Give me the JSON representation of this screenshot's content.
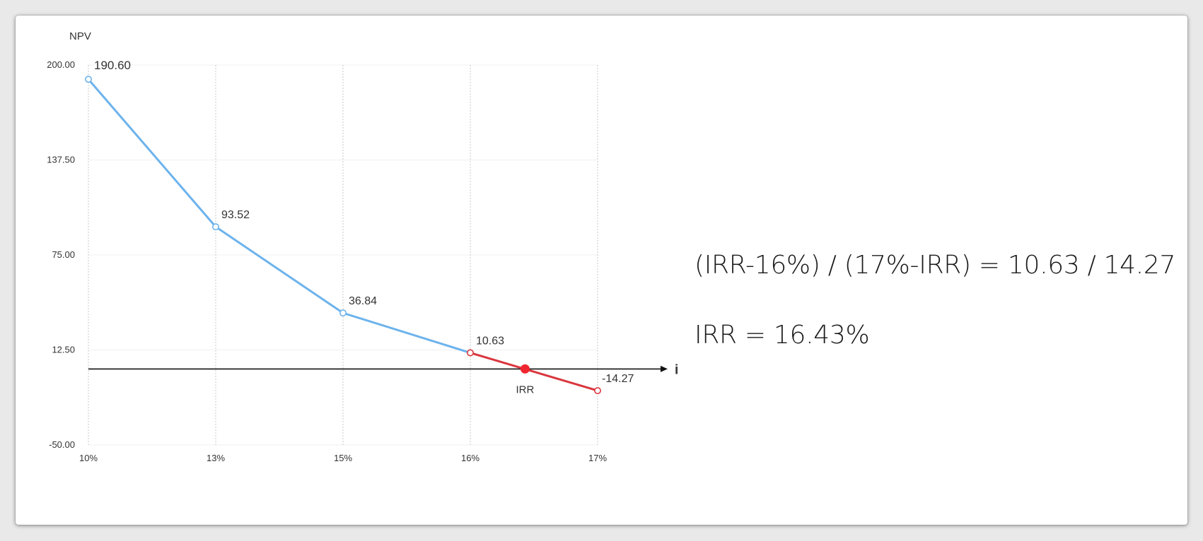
{
  "chart_data": {
    "type": "line",
    "ylabel": "NPV",
    "xlabel": "i",
    "x_categories": [
      "10%",
      "13%",
      "15%",
      "16%",
      "17%"
    ],
    "y_ticks": [
      "200.00",
      "137.50",
      "75.00",
      "12.50",
      "-50.00"
    ],
    "y_tick_values": [
      200,
      137.5,
      75,
      12.5,
      -50
    ],
    "ylim": [
      -50,
      200
    ],
    "grid": "vertical",
    "series": [
      {
        "values": [
          190.6,
          93.52,
          36.84,
          10.63
        ],
        "x_index": [
          0,
          1,
          2,
          3
        ],
        "color": "#6db3ec"
      },
      {
        "values": [
          10.63,
          -14.27
        ],
        "x_index": [
          3,
          4
        ],
        "color": "#d9363e"
      }
    ],
    "data_labels": [
      "190.60",
      "93.52",
      "36.84",
      "10.63",
      "-14.27"
    ],
    "irr_point": {
      "label": "IRR",
      "x_rate": 16.43,
      "value": 0,
      "color": "#f0262f"
    },
    "zero_line": true
  },
  "formulas": {
    "line1": "(IRR-16%) / (17%-IRR) = 10.63 / 14.27",
    "line2": "IRR = 16.43%"
  }
}
